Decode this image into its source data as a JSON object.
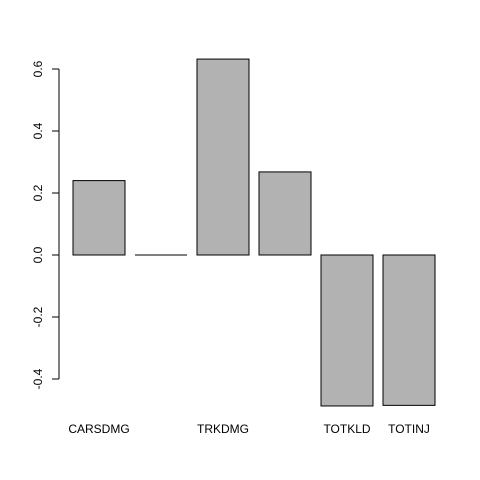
{
  "chart_data": {
    "type": "bar",
    "categories": [
      "CARSDMG",
      "",
      "TRKDMG",
      "",
      "TOTKLD",
      "TOTINJ"
    ],
    "series": [
      {
        "values": [
          0.24,
          0.0,
          0.632,
          0.268,
          -0.487,
          -0.485
        ]
      }
    ],
    "ylim": [
      -0.4,
      0.6
    ],
    "yticks": [
      -0.4,
      -0.2,
      0.0,
      0.2,
      0.4,
      0.6
    ],
    "ytick_labels": [
      "-0.4",
      "-0.2",
      "0.0",
      "0.2",
      "0.4",
      "0.6"
    ],
    "title": "",
    "xlabel": "",
    "ylabel": "",
    "grid": false,
    "bar_color": "#b2b2b2",
    "bar_border_color": "#000000"
  }
}
